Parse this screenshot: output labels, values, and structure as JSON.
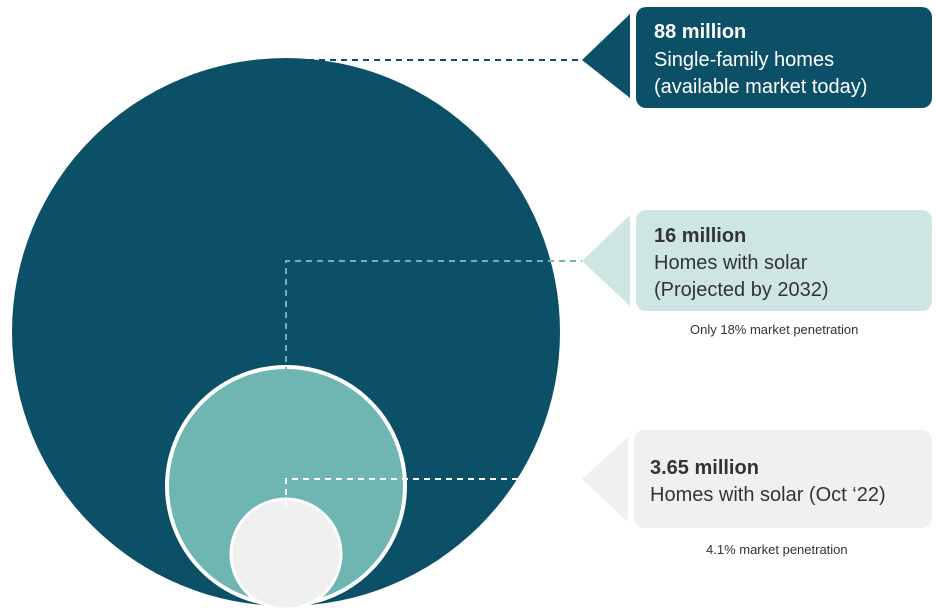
{
  "chart_data": {
    "type": "nested-bubble",
    "unit": "million",
    "items": [
      {
        "value": 88,
        "value_label": "88 million",
        "lines": [
          "Single-family homes",
          "(available market today)"
        ],
        "note": "",
        "color": "#0c5068",
        "text_color": "#ffffff"
      },
      {
        "value": 16,
        "value_label": "16 million",
        "lines": [
          "Homes with solar",
          "(Projected by 2032)"
        ],
        "note": "Only 18% market penetration",
        "color": "#6fb6b2",
        "callout_color": "#cde6e4",
        "text_color": "#333333"
      },
      {
        "value": 3.65,
        "value_label": "3.65 million",
        "lines": [
          "Homes with solar (Oct ‘22)"
        ],
        "note": "4.1% market penetration",
        "color": "#f0f0f0",
        "callout_color": "#f0f0f0",
        "text_color": "#333333"
      }
    ]
  }
}
